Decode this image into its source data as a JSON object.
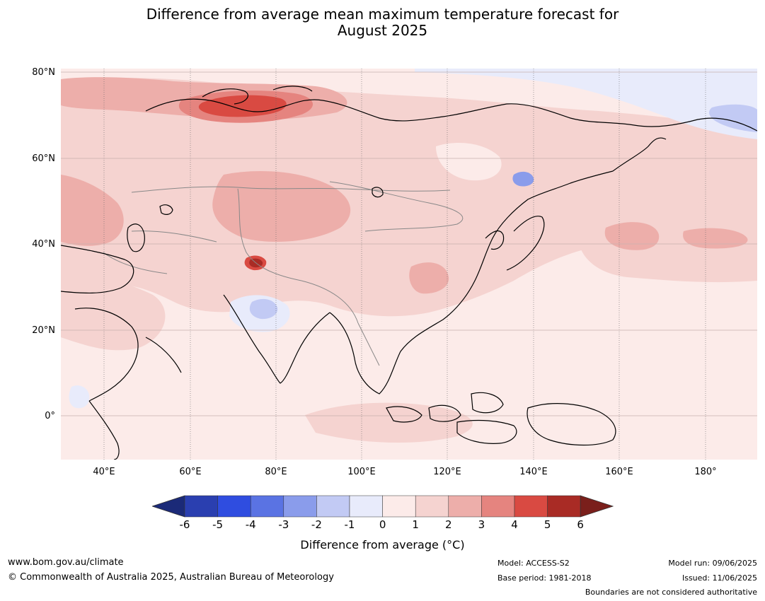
{
  "title": {
    "line1": "Difference from average mean maximum temperature forecast for",
    "line2": "August 2025"
  },
  "map": {
    "lat_labels": [
      "80°N",
      "60°N",
      "40°N",
      "20°N",
      "0°"
    ],
    "lon_labels": [
      "40°E",
      "60°E",
      "80°E",
      "100°E",
      "120°E",
      "140°E",
      "160°E",
      "180°"
    ]
  },
  "colorbar": {
    "ticks": [
      "-6",
      "-5",
      "-4",
      "-3",
      "-2",
      "-1",
      "0",
      "1",
      "2",
      "3",
      "4",
      "5",
      "6"
    ],
    "colors": [
      "#1b2a78",
      "#2a3fb0",
      "#2f4de0",
      "#5a73e3",
      "#8a9ceb",
      "#c2caf4",
      "#e8ebfb",
      "#fcebe9",
      "#f5d3d0",
      "#edaeaa",
      "#e5847f",
      "#d94a42",
      "#a92b25",
      "#7a1f1b"
    ],
    "label": "Difference from average (°C)"
  },
  "footer": {
    "url": "www.bom.gov.au/climate",
    "copyright": "© Commonwealth of Australia 2025, Australian Bureau of Meteorology",
    "model": "Model: ACCESS-S2",
    "base_period": "Base period: 1981-2018",
    "model_run": "Model run: 09/06/2025",
    "issued": "Issued: 11/06/2025",
    "disclaimer": "Boundaries are not considered authoritative"
  }
}
